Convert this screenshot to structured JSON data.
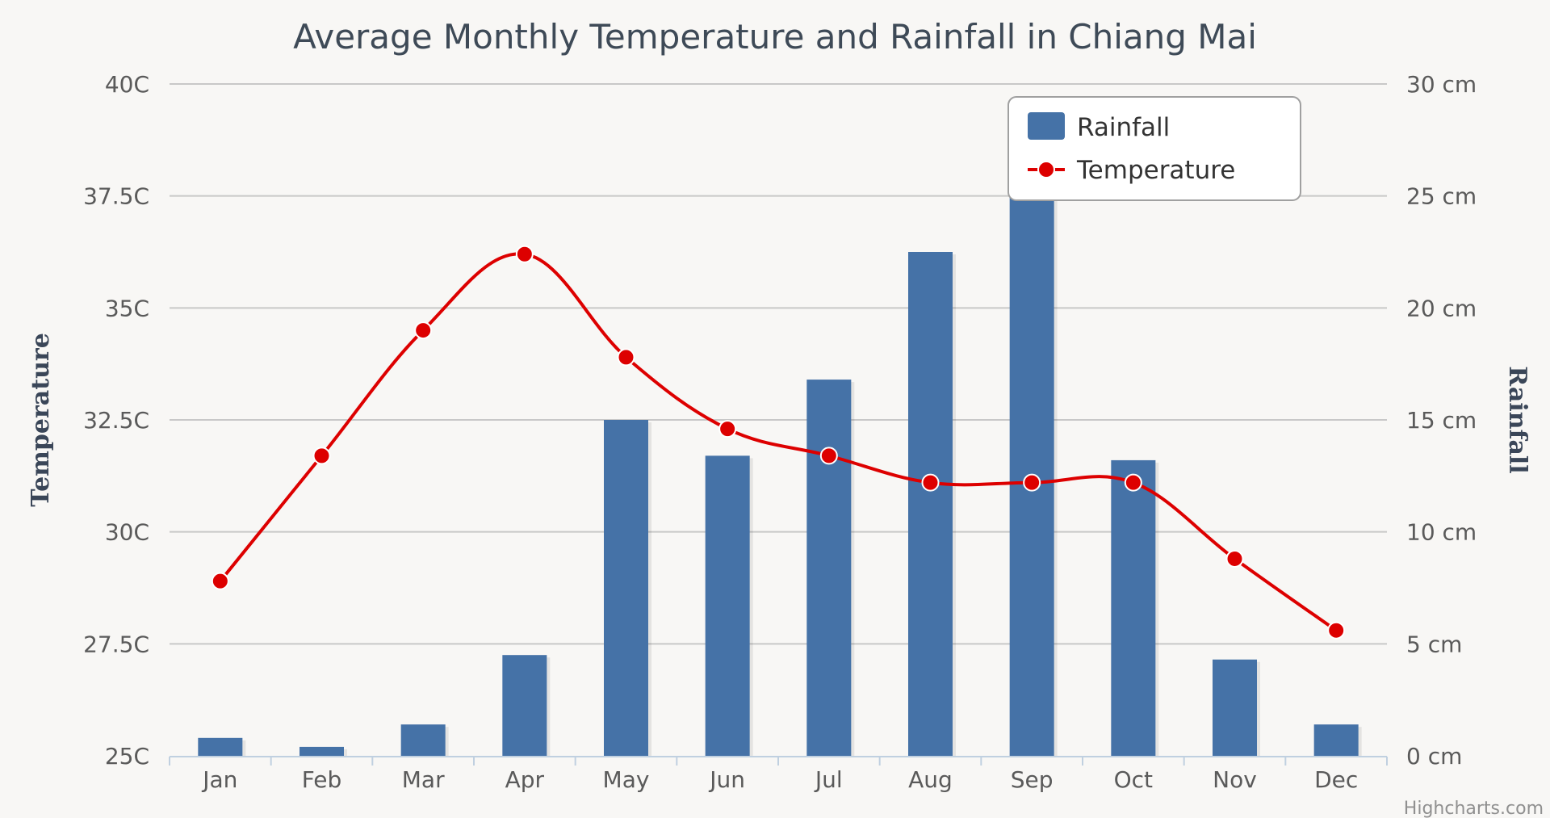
{
  "chart_data": {
    "type": "bar+line",
    "title": "Average Monthly Temperature and Rainfall in Chiang Mai",
    "categories": [
      "Jan",
      "Feb",
      "Mar",
      "Apr",
      "May",
      "Jun",
      "Jul",
      "Aug",
      "Sep",
      "Oct",
      "Nov",
      "Dec"
    ],
    "series": [
      {
        "name": "Rainfall",
        "type": "column",
        "axis": "right",
        "unit": "cm",
        "color": "#4572a7",
        "values": [
          0.8,
          0.4,
          1.4,
          4.5,
          15.0,
          13.4,
          16.8,
          22.5,
          26.0,
          13.2,
          4.3,
          1.4
        ]
      },
      {
        "name": "Temperature",
        "type": "spline",
        "axis": "left",
        "unit": "C",
        "color": "#dd0000",
        "values": [
          28.9,
          31.7,
          34.5,
          36.2,
          33.9,
          32.3,
          31.7,
          31.1,
          31.1,
          31.1,
          29.4,
          27.8
        ]
      }
    ],
    "y_left": {
      "title": "Temperature",
      "min": 25,
      "max": 40,
      "ticks": [
        25,
        27.5,
        30,
        32.5,
        35,
        37.5,
        40
      ],
      "tick_labels": [
        "25C",
        "27.5C",
        "30C",
        "32.5C",
        "35C",
        "37.5C",
        "40C"
      ]
    },
    "y_right": {
      "title": "Rainfall",
      "min": 0,
      "max": 30,
      "ticks": [
        0,
        5,
        10,
        15,
        20,
        25,
        30
      ],
      "tick_labels": [
        "0 cm",
        "5 cm",
        "10 cm",
        "15 cm",
        "20 cm",
        "25 cm",
        "30 cm"
      ]
    },
    "legend": {
      "position": "top-right",
      "items": [
        "Rainfall",
        "Temperature"
      ]
    },
    "credits": "Highcharts.com",
    "grid": true
  },
  "colors": {
    "background": "#f8f7f5",
    "bar": "#4572a7",
    "line": "#dd0000",
    "grid": "#c8c8c8",
    "axis_line": "#c0d0e0"
  }
}
